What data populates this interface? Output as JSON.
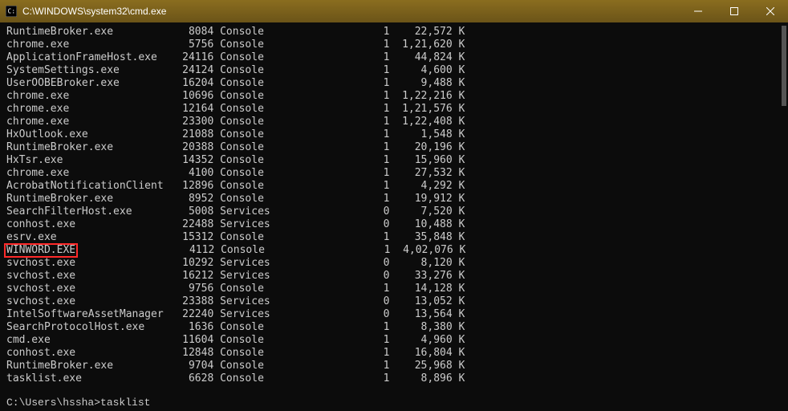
{
  "window": {
    "title": "C:\\WINDOWS\\system32\\cmd.exe"
  },
  "columns": {
    "name_width": 25,
    "pid_width": 8,
    "session_name_width": 16,
    "session_num_width": 11,
    "mem_width": 12
  },
  "highlight_row_index": 15,
  "rows": [
    {
      "name": "RuntimeBroker.exe",
      "pid": "8084",
      "sname": "Console",
      "snum": "1",
      "mem": "22,572 K"
    },
    {
      "name": "chrome.exe",
      "pid": "5756",
      "sname": "Console",
      "snum": "1",
      "mem": "1,21,620 K"
    },
    {
      "name": "ApplicationFrameHost.exe",
      "pid": "24116",
      "sname": "Console",
      "snum": "1",
      "mem": "44,824 K"
    },
    {
      "name": "SystemSettings.exe",
      "pid": "24124",
      "sname": "Console",
      "snum": "1",
      "mem": "4,600 K"
    },
    {
      "name": "UserOOBEBroker.exe",
      "pid": "16204",
      "sname": "Console",
      "snum": "1",
      "mem": "9,488 K"
    },
    {
      "name": "chrome.exe",
      "pid": "10696",
      "sname": "Console",
      "snum": "1",
      "mem": "1,22,216 K"
    },
    {
      "name": "chrome.exe",
      "pid": "12164",
      "sname": "Console",
      "snum": "1",
      "mem": "1,21,576 K"
    },
    {
      "name": "chrome.exe",
      "pid": "23300",
      "sname": "Console",
      "snum": "1",
      "mem": "1,22,408 K"
    },
    {
      "name": "HxOutlook.exe",
      "pid": "21088",
      "sname": "Console",
      "snum": "1",
      "mem": "1,548 K"
    },
    {
      "name": "RuntimeBroker.exe",
      "pid": "20388",
      "sname": "Console",
      "snum": "1",
      "mem": "20,196 K"
    },
    {
      "name": "HxTsr.exe",
      "pid": "14352",
      "sname": "Console",
      "snum": "1",
      "mem": "15,960 K"
    },
    {
      "name": "chrome.exe",
      "pid": "4100",
      "sname": "Console",
      "snum": "1",
      "mem": "27,532 K"
    },
    {
      "name": "AcrobatNotificationClient",
      "pid": "12896",
      "sname": "Console",
      "snum": "1",
      "mem": "4,292 K"
    },
    {
      "name": "RuntimeBroker.exe",
      "pid": "8952",
      "sname": "Console",
      "snum": "1",
      "mem": "19,912 K"
    },
    {
      "name": "SearchFilterHost.exe",
      "pid": "5008",
      "sname": "Services",
      "snum": "0",
      "mem": "7,520 K"
    },
    {
      "name": "WINWORD.EXE",
      "pid": "4112",
      "sname": "Console",
      "snum": "1",
      "mem": "4,02,076 K"
    },
    {
      "name": "conhost.exe",
      "pid": "22488",
      "sname": "Services",
      "snum": "0",
      "mem": "10,488 K"
    },
    {
      "name": "esrv.exe",
      "pid": "15312",
      "sname": "Console",
      "snum": "1",
      "mem": "35,848 K"
    },
    {
      "name": "svchost.exe",
      "pid": "10292",
      "sname": "Services",
      "snum": "0",
      "mem": "8,120 K"
    },
    {
      "name": "svchost.exe",
      "pid": "16212",
      "sname": "Services",
      "snum": "0",
      "mem": "33,276 K"
    },
    {
      "name": "svchost.exe",
      "pid": "9756",
      "sname": "Console",
      "snum": "1",
      "mem": "14,128 K"
    },
    {
      "name": "svchost.exe",
      "pid": "23388",
      "sname": "Services",
      "snum": "0",
      "mem": "13,052 K"
    },
    {
      "name": "IntelSoftwareAssetManager",
      "pid": "22240",
      "sname": "Services",
      "snum": "0",
      "mem": "13,564 K"
    },
    {
      "name": "SearchProtocolHost.exe",
      "pid": "1636",
      "sname": "Console",
      "snum": "1",
      "mem": "8,380 K"
    },
    {
      "name": "cmd.exe",
      "pid": "11604",
      "sname": "Console",
      "snum": "1",
      "mem": "4,960 K"
    },
    {
      "name": "conhost.exe",
      "pid": "12848",
      "sname": "Console",
      "snum": "1",
      "mem": "16,804 K"
    },
    {
      "name": "RuntimeBroker.exe",
      "pid": "9704",
      "sname": "Console",
      "snum": "1",
      "mem": "25,968 K"
    },
    {
      "name": "tasklist.exe",
      "pid": "6628",
      "sname": "Console",
      "snum": "1",
      "mem": "8,896 K"
    }
  ],
  "reorder_after_highlight": [
    15,
    16,
    17,
    18,
    19,
    20,
    21,
    22,
    23,
    24,
    25,
    26,
    27
  ],
  "prompt": "C:\\Users\\hssha>tasklist"
}
